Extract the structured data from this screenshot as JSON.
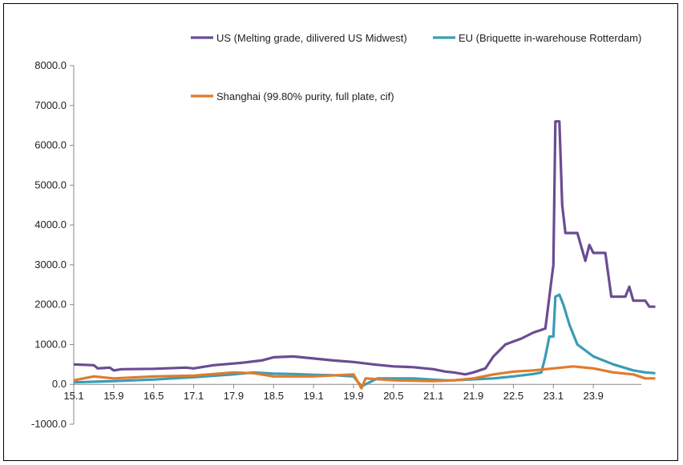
{
  "chart_data": {
    "type": "line",
    "title": "",
    "xlabel": "",
    "ylabel": "",
    "ylim": [
      -1000,
      8000
    ],
    "y_ticks": [
      -1000,
      0,
      1000,
      2000,
      3000,
      4000,
      5000,
      6000,
      7000,
      8000
    ],
    "y_tick_labels": [
      "-1000.0",
      "0.0",
      "1000.0",
      "2000.0",
      "3000.0",
      "4000.0",
      "5000.0",
      "6000.0",
      "7000.0",
      "8000.0"
    ],
    "x_tick_labels": [
      "15.1",
      "15.9",
      "16.5",
      "17.1",
      "17.9",
      "18.5",
      "19.1",
      "19.9",
      "20.5",
      "21.1",
      "21.9",
      "22.5",
      "23.1",
      "23.9"
    ],
    "x_range": [
      0,
      14.2
    ],
    "legend_position": "top",
    "grid": false,
    "series": [
      {
        "name": "US (Melting grade, dilivered US Midwest)",
        "color": "#6a4c93",
        "points": [
          [
            0,
            500
          ],
          [
            0.5,
            480
          ],
          [
            0.6,
            400
          ],
          [
            0.9,
            420
          ],
          [
            1.0,
            350
          ],
          [
            1.2,
            380
          ],
          [
            2.0,
            390
          ],
          [
            2.8,
            420
          ],
          [
            3.0,
            400
          ],
          [
            3.5,
            480
          ],
          [
            4.2,
            540
          ],
          [
            4.7,
            600
          ],
          [
            5.0,
            680
          ],
          [
            5.5,
            700
          ],
          [
            6.0,
            650
          ],
          [
            6.5,
            600
          ],
          [
            7.0,
            560
          ],
          [
            7.5,
            500
          ],
          [
            8.0,
            450
          ],
          [
            8.5,
            430
          ],
          [
            9.0,
            380
          ],
          [
            9.3,
            320
          ],
          [
            9.5,
            300
          ],
          [
            9.8,
            250
          ],
          [
            10.0,
            300
          ],
          [
            10.3,
            400
          ],
          [
            10.5,
            700
          ],
          [
            10.8,
            1000
          ],
          [
            11.2,
            1150
          ],
          [
            11.5,
            1300
          ],
          [
            11.8,
            1400
          ],
          [
            11.9,
            2200
          ],
          [
            12.0,
            3000
          ],
          [
            12.05,
            6600
          ],
          [
            12.15,
            6600
          ],
          [
            12.22,
            4500
          ],
          [
            12.3,
            3800
          ],
          [
            12.6,
            3800
          ],
          [
            12.8,
            3100
          ],
          [
            12.9,
            3500
          ],
          [
            13.0,
            3300
          ],
          [
            13.3,
            3300
          ],
          [
            13.45,
            2200
          ],
          [
            13.8,
            2200
          ],
          [
            13.9,
            2450
          ],
          [
            14.0,
            2100
          ],
          [
            14.3,
            2100
          ],
          [
            14.4,
            1950
          ],
          [
            14.55,
            1950
          ]
        ]
      },
      {
        "name": "EU (Briquette in-warehouse Rotterdam)",
        "color": "#3a9cb5",
        "points": [
          [
            0,
            50
          ],
          [
            1.0,
            80
          ],
          [
            2.0,
            120
          ],
          [
            3.0,
            180
          ],
          [
            4.0,
            250
          ],
          [
            4.5,
            300
          ],
          [
            5.0,
            270
          ],
          [
            5.5,
            260
          ],
          [
            6.0,
            240
          ],
          [
            6.5,
            230
          ],
          [
            7.0,
            200
          ],
          [
            7.2,
            -50
          ],
          [
            7.3,
            0
          ],
          [
            7.6,
            150
          ],
          [
            8.5,
            150
          ],
          [
            9.3,
            100
          ],
          [
            9.5,
            100
          ],
          [
            10.5,
            150
          ],
          [
            11.0,
            200
          ],
          [
            11.5,
            260
          ],
          [
            11.7,
            300
          ],
          [
            11.8,
            700
          ],
          [
            11.9,
            1200
          ],
          [
            12.0,
            1200
          ],
          [
            12.05,
            2200
          ],
          [
            12.15,
            2250
          ],
          [
            12.25,
            2000
          ],
          [
            12.4,
            1500
          ],
          [
            12.6,
            1000
          ],
          [
            13.0,
            700
          ],
          [
            13.5,
            500
          ],
          [
            14.0,
            350
          ],
          [
            14.3,
            300
          ],
          [
            14.55,
            280
          ]
        ]
      },
      {
        "name": "Shanghai (99.80% purity, full plate, cif)",
        "color": "#e07b2c",
        "points": [
          [
            0,
            100
          ],
          [
            0.5,
            200
          ],
          [
            1.0,
            150
          ],
          [
            2.0,
            200
          ],
          [
            3.0,
            220
          ],
          [
            4.0,
            300
          ],
          [
            4.5,
            280
          ],
          [
            5.0,
            200
          ],
          [
            6.0,
            200
          ],
          [
            7.0,
            250
          ],
          [
            7.2,
            -100
          ],
          [
            7.3,
            150
          ],
          [
            8.0,
            100
          ],
          [
            9.0,
            80
          ],
          [
            9.5,
            100
          ],
          [
            10.0,
            150
          ],
          [
            10.5,
            250
          ],
          [
            11.0,
            320
          ],
          [
            11.5,
            350
          ],
          [
            12.0,
            400
          ],
          [
            12.5,
            450
          ],
          [
            13.0,
            400
          ],
          [
            13.5,
            300
          ],
          [
            14.0,
            250
          ],
          [
            14.3,
            150
          ],
          [
            14.55,
            150
          ]
        ]
      }
    ]
  }
}
